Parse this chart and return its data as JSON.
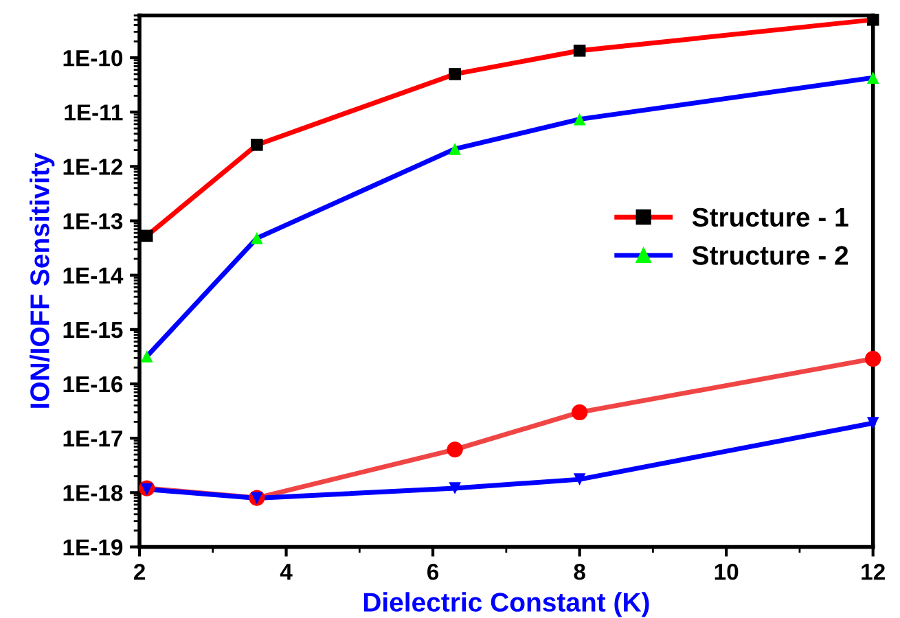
{
  "chart_data": {
    "type": "line",
    "xlabel": "Dielectric Constant (K)",
    "ylabel": "ION/IOFF Sensitivity",
    "log": "y",
    "xlim": [
      2,
      12
    ],
    "xticks": [
      2,
      4,
      6,
      8,
      10,
      12
    ],
    "ylim": [
      1e-19,
      6e-10
    ],
    "yticks": [
      {
        "value": 1e-19,
        "label": "1E-19"
      },
      {
        "value": 1e-18,
        "label": "1E-18"
      },
      {
        "value": 1e-17,
        "label": "1E-17"
      },
      {
        "value": 1e-16,
        "label": "1E-16"
      },
      {
        "value": 1e-15,
        "label": "1E-15"
      },
      {
        "value": 1e-14,
        "label": "1E-14"
      },
      {
        "value": 1e-13,
        "label": "1E-13"
      },
      {
        "value": 1e-12,
        "label": "1E-12"
      },
      {
        "value": 1e-11,
        "label": "1E-11"
      },
      {
        "value": 1e-10,
        "label": "1E-10"
      }
    ],
    "grid": false,
    "legend": "right",
    "line_style": "solid",
    "series": [
      {
        "name": "Structure - 1",
        "color": "#ff0000",
        "colors": [
          "#000000",
          "#000000",
          "#000000",
          "#000000",
          "#000000"
        ],
        "marker": "square",
        "x": [
          2.1,
          3.6,
          6.3,
          8,
          12
        ],
        "values": [
          5.3e-14,
          2.5e-12,
          5e-11,
          1.35e-10,
          5e-10
        ]
      },
      {
        "name": "Structure - 2",
        "color": "#0000ff",
        "colors": [
          "#00ff00",
          "#00ff00",
          "#00ff00",
          "#00ff00",
          "#00ff00"
        ],
        "marker": "triangle",
        "x": [
          2.1,
          3.6,
          6.3,
          8,
          12
        ],
        "values": [
          3.2e-16,
          4.8e-14,
          2.1e-12,
          7.4e-12,
          4.3e-11
        ]
      },
      {
        "color": "#f04545",
        "colors": [
          "#ff0000",
          "#ff0000",
          "#ff0000",
          "#ff0000",
          "#ff0000"
        ],
        "marker": "circle",
        "x": [
          2.1,
          3.6,
          6.3,
          8,
          12
        ],
        "values": [
          1.2e-18,
          8e-19,
          6.2e-18,
          3e-17,
          2.9e-16
        ]
      },
      {
        "color": "#0000ff",
        "colors": [
          "#0000ff",
          "#0000ff",
          "#0000ff",
          "#0000ff",
          "#0000ff"
        ],
        "marker": "triangle-down",
        "x": [
          2.1,
          3.6,
          6.3,
          8,
          12
        ],
        "values": [
          1.15e-18,
          7.9e-19,
          1.2e-18,
          1.75e-18,
          1.9e-17
        ]
      }
    ]
  }
}
